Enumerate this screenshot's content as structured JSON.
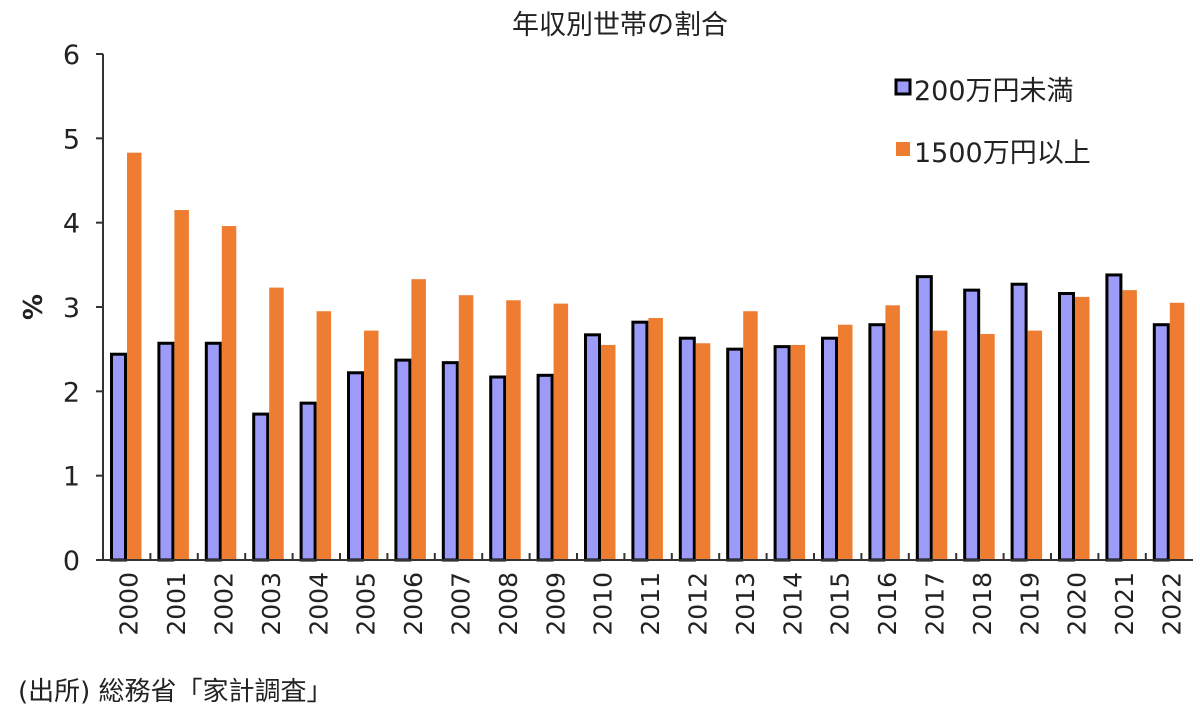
{
  "chart_data": {
    "type": "bar",
    "title": "年収別世帯の割合",
    "ylabel": "%",
    "xlabel": "",
    "ylim": [
      0,
      6
    ],
    "yticks": [
      0,
      1,
      2,
      3,
      4,
      5,
      6
    ],
    "grid": false,
    "legend_position": "top-right",
    "categories": [
      "2000",
      "2001",
      "2002",
      "2003",
      "2004",
      "2005",
      "2006",
      "2007",
      "2008",
      "2009",
      "2010",
      "2011",
      "2012",
      "2013",
      "2014",
      "2015",
      "2016",
      "2017",
      "2018",
      "2019",
      "2020",
      "2021",
      "2022"
    ],
    "series": [
      {
        "name": "200万円未満",
        "color": "#9c9cf8",
        "outline": "#000000",
        "values": [
          2.44,
          2.57,
          2.57,
          1.73,
          1.86,
          2.22,
          2.37,
          2.34,
          2.17,
          2.19,
          2.67,
          2.82,
          2.63,
          2.5,
          2.53,
          2.63,
          2.79,
          3.36,
          3.2,
          3.27,
          3.16,
          3.38,
          2.79
        ]
      },
      {
        "name": "1500万円以上",
        "color": "#ee7d31",
        "values": [
          4.83,
          4.15,
          3.96,
          3.23,
          2.95,
          2.72,
          3.33,
          3.14,
          3.08,
          3.04,
          2.55,
          2.87,
          2.57,
          2.95,
          2.55,
          2.79,
          3.02,
          2.72,
          2.68,
          2.72,
          3.12,
          3.2,
          3.05
        ]
      }
    ],
    "source": "(出所) 総務省「家計調査」"
  }
}
